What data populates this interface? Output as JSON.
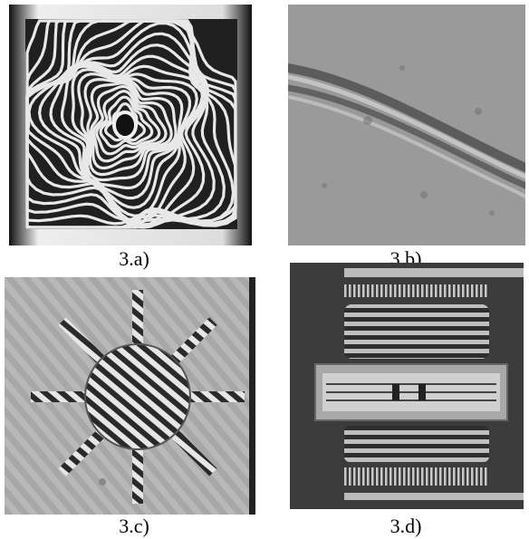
{
  "figure": {
    "panels": [
      {
        "id": "a",
        "caption": "3.a)",
        "subject": "interferogram-swirl-fringes"
      },
      {
        "id": "b",
        "caption": "3.b)",
        "subject": "textured-surface-diagonal-bands"
      },
      {
        "id": "c",
        "caption": "3.c)",
        "subject": "sun-shaped-structure-with-stripes"
      },
      {
        "id": "d",
        "caption": "3.d)",
        "subject": "mems-device-fringes"
      }
    ]
  }
}
